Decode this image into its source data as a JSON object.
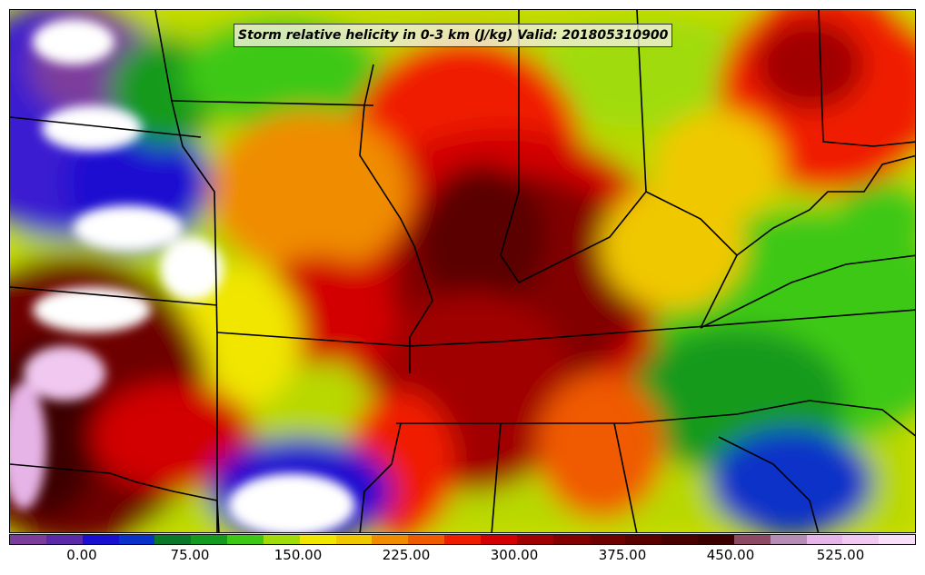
{
  "title": "Storm relative helicity in 0-3 km (J/kg) Valid: 201805310900",
  "colorbar": {
    "colors": [
      "#7b3c9c",
      "#5a2aa8",
      "#1a0fd0",
      "#0a32c8",
      "#0a7a2a",
      "#149a1e",
      "#3cc814",
      "#a0dc0a",
      "#f0e600",
      "#f0c800",
      "#f08c00",
      "#f05a00",
      "#f01e00",
      "#d20000",
      "#a00000",
      "#820000",
      "#6e0000",
      "#5a0000",
      "#4a0000",
      "#3c0000",
      "#8c4a64",
      "#b48cb4",
      "#e6b4e6",
      "#f0c8f0",
      "#f8e0f8"
    ],
    "tick_values": [
      "0.00",
      "75.00",
      "150.00",
      "225.00",
      "300.00",
      "375.00",
      "450.00",
      "525.00"
    ]
  }
}
